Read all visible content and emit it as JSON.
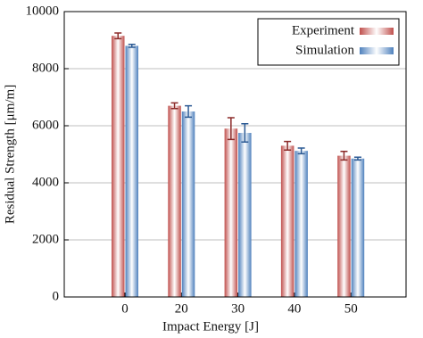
{
  "chart_data": {
    "type": "bar",
    "x_label": "Impact Energy [J]",
    "y_label": "Residual Strength [μm/m]",
    "categories": [
      "0",
      "20",
      "30",
      "40",
      "50"
    ],
    "series": [
      {
        "name": "Experiment",
        "color": "#c0504d",
        "values": [
          9150,
          6700,
          5900,
          5300,
          4950
        ],
        "errors": [
          100,
          100,
          380,
          150,
          150
        ]
      },
      {
        "name": "Simulation",
        "color": "#4f81bd",
        "values": [
          8800,
          6500,
          5750,
          5120,
          4850
        ],
        "errors": [
          50,
          200,
          320,
          100,
          50
        ]
      }
    ],
    "ylim": [
      0,
      10000
    ],
    "yticks": [
      0,
      2000,
      4000,
      6000,
      8000,
      10000
    ],
    "grid": true,
    "legend": "top-right"
  }
}
